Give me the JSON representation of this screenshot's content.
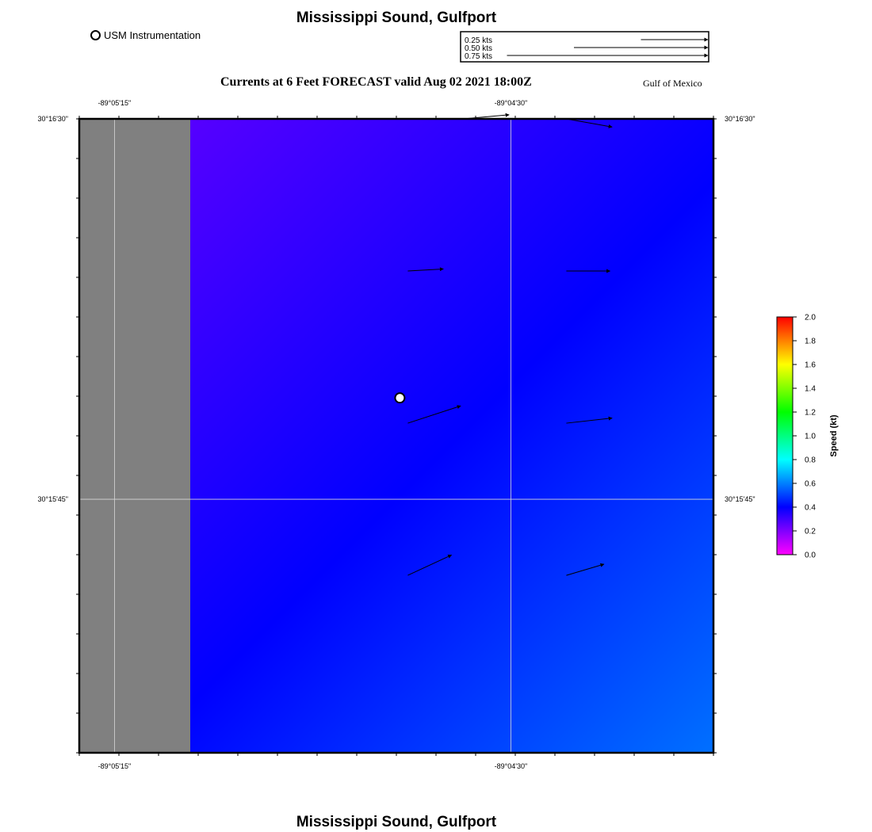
{
  "header": {
    "title": "Mississippi Sound, Gulfport",
    "subtitle": "Currents at 6 Feet FORECAST valid Aug 02 2021 18:00Z",
    "region_label": "Gulf of Mexico",
    "footer_title": "Mississippi Sound, Gulfport"
  },
  "station_legend": {
    "label": "USM Instrumentation",
    "icon": "station-marker-icon"
  },
  "vector_scale": {
    "items": [
      {
        "label": "0.25 kts",
        "speed": 0.25
      },
      {
        "label": "0.50 kts",
        "speed": 0.5
      },
      {
        "label": "0.75 kts",
        "speed": 0.75
      }
    ]
  },
  "map": {
    "lon_ticks": [
      {
        "label": "-89°05'15\"",
        "lon": -89.0875
      },
      {
        "label": "-89°04'30\"",
        "lon": -89.075
      }
    ],
    "lat_ticks": [
      {
        "label": "30°16'30\"",
        "lat": 30.275
      },
      {
        "label": "30°15'45\"",
        "lat": 30.2625
      }
    ],
    "lon_range": [
      -89.08861,
      -89.06861
    ],
    "lat_range": [
      30.25417,
      30.275
    ],
    "land_color": "#808080",
    "land_lon_max": -89.08511,
    "station": {
      "lon": -89.0785,
      "lat": 30.26583
    },
    "current_vectors": [
      {
        "lon": -89.0765,
        "lat": 30.275,
        "u": 0.45,
        "v": 0.04
      },
      {
        "lon": -89.07325,
        "lat": 30.275,
        "u": 0.45,
        "v": -0.08
      },
      {
        "lon": -89.07825,
        "lat": 30.27,
        "u": 0.35,
        "v": 0.02
      },
      {
        "lon": -89.07325,
        "lat": 30.27,
        "u": 0.43,
        "v": 0.0
      },
      {
        "lon": -89.07825,
        "lat": 30.265,
        "u": 0.52,
        "v": 0.17
      },
      {
        "lon": -89.07325,
        "lat": 30.265,
        "u": 0.45,
        "v": 0.05
      },
      {
        "lon": -89.07825,
        "lat": 30.26,
        "u": 0.43,
        "v": 0.2
      },
      {
        "lon": -89.07325,
        "lat": 30.26,
        "u": 0.37,
        "v": 0.11
      }
    ]
  },
  "colorbar": {
    "title": "Speed (kt)",
    "ticks": [
      "0.0",
      "0.2",
      "0.4",
      "0.6",
      "0.8",
      "1.0",
      "1.2",
      "1.4",
      "1.6",
      "1.8",
      "2.0"
    ],
    "colors": [
      "#ff00ff",
      "#8000ff",
      "#0000ff",
      "#0080ff",
      "#00ffff",
      "#00ff80",
      "#00ff00",
      "#80ff00",
      "#ffff00",
      "#ff8000",
      "#ff0000"
    ]
  },
  "colors": {
    "speed_field_top_left": "#6600ff",
    "speed_field_mid": "#0000ff",
    "speed_field_bottom_right": "#0070ff"
  }
}
